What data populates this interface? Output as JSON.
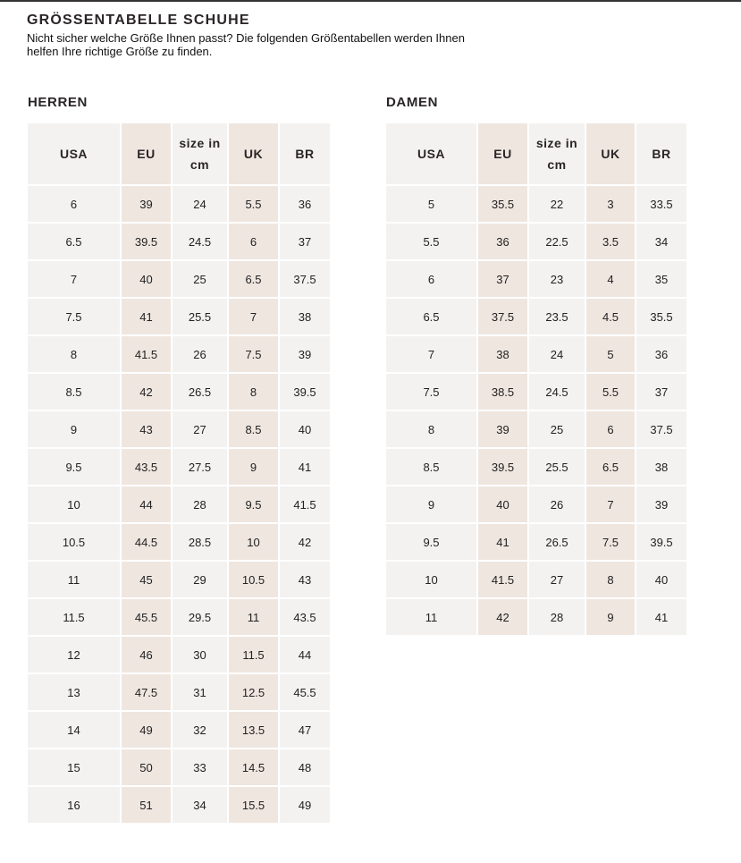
{
  "title": "GRÖSSENTABELLE SCHUHE",
  "intro": "Nicht sicher welche Größe Ihnen passt? Die folgenden Größentabellen werden Ihnen helfen Ihre richtige Größe zu finden.",
  "colors": {
    "cell": "#f3f2f1",
    "highlight": "#efe6e0"
  },
  "herren": {
    "label": "HERREN",
    "columns": [
      "USA",
      "EU",
      "size in cm",
      "UK",
      "BR"
    ],
    "rows": [
      [
        "6",
        "39",
        "24",
        "5.5",
        "36"
      ],
      [
        "6.5",
        "39.5",
        "24.5",
        "6",
        "37"
      ],
      [
        "7",
        "40",
        "25",
        "6.5",
        "37.5"
      ],
      [
        "7.5",
        "41",
        "25.5",
        "7",
        "38"
      ],
      [
        "8",
        "41.5",
        "26",
        "7.5",
        "39"
      ],
      [
        "8.5",
        "42",
        "26.5",
        "8",
        "39.5"
      ],
      [
        "9",
        "43",
        "27",
        "8.5",
        "40"
      ],
      [
        "9.5",
        "43.5",
        "27.5",
        "9",
        "41"
      ],
      [
        "10",
        "44",
        "28",
        "9.5",
        "41.5"
      ],
      [
        "10.5",
        "44.5",
        "28.5",
        "10",
        "42"
      ],
      [
        "11",
        "45",
        "29",
        "10.5",
        "43"
      ],
      [
        "11.5",
        "45.5",
        "29.5",
        "11",
        "43.5"
      ],
      [
        "12",
        "46",
        "30",
        "11.5",
        "44"
      ],
      [
        "13",
        "47.5",
        "31",
        "12.5",
        "45.5"
      ],
      [
        "14",
        "49",
        "32",
        "13.5",
        "47"
      ],
      [
        "15",
        "50",
        "33",
        "14.5",
        "48"
      ],
      [
        "16",
        "51",
        "34",
        "15.5",
        "49"
      ]
    ]
  },
  "damen": {
    "label": "DAMEN",
    "columns": [
      "USA",
      "EU",
      "size in cm",
      "UK",
      "BR"
    ],
    "rows": [
      [
        "5",
        "35.5",
        "22",
        "3",
        "33.5"
      ],
      [
        "5.5",
        "36",
        "22.5",
        "3.5",
        "34"
      ],
      [
        "6",
        "37",
        "23",
        "4",
        "35"
      ],
      [
        "6.5",
        "37.5",
        "23.5",
        "4.5",
        "35.5"
      ],
      [
        "7",
        "38",
        "24",
        "5",
        "36"
      ],
      [
        "7.5",
        "38.5",
        "24.5",
        "5.5",
        "37"
      ],
      [
        "8",
        "39",
        "25",
        "6",
        "37.5"
      ],
      [
        "8.5",
        "39.5",
        "25.5",
        "6.5",
        "38"
      ],
      [
        "9",
        "40",
        "26",
        "7",
        "39"
      ],
      [
        "9.5",
        "41",
        "26.5",
        "7.5",
        "39.5"
      ],
      [
        "10",
        "41.5",
        "27",
        "8",
        "40"
      ],
      [
        "11",
        "42",
        "28",
        "9",
        "41"
      ]
    ]
  }
}
